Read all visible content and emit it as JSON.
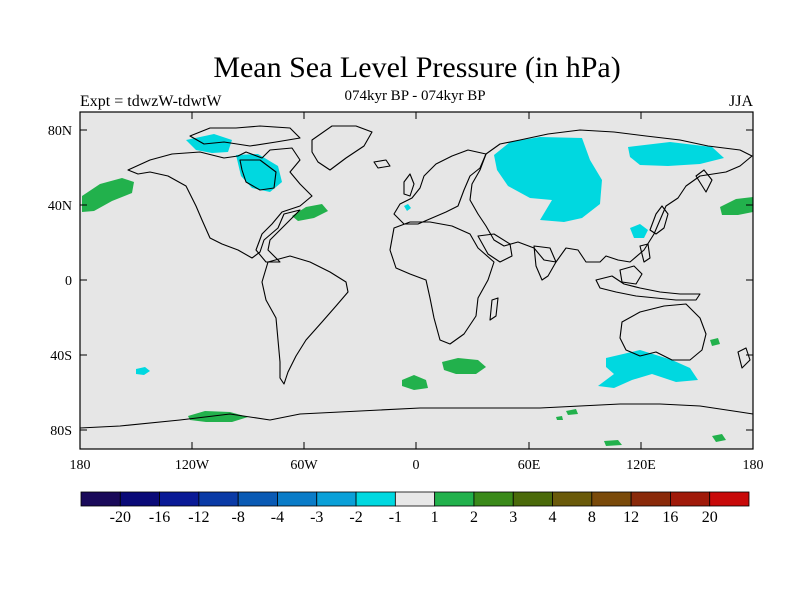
{
  "header": {
    "title": "Mean Sea Level Pressure (in hPa)",
    "subtitle": "074kyr BP - 074kyr BP",
    "experiment": "Expt = tdwzW-tdwtW",
    "season": "JJA"
  },
  "map": {
    "projection": "cylindrical equidistant",
    "background_color": "#e6e6e6",
    "coastline_color": "#000000",
    "lat_ticks": [
      "80N",
      "40N",
      "0",
      "40S",
      "80S"
    ],
    "lon_ticks": [
      "180",
      "120W",
      "60W",
      "0",
      "60E",
      "120E",
      "180"
    ],
    "anomaly_colors": {
      "negative_1_to_2": "#00d8e0",
      "positive_1_to_2": "#22b14c"
    }
  },
  "colorbar": {
    "colors": [
      "#1a0a5a",
      "#0a0a78",
      "#0a1a96",
      "#0a3aa6",
      "#0a5ab4",
      "#0a7cc8",
      "#0aa0d8",
      "#00d8e0",
      "#e8e8e8",
      "#22b14c",
      "#3a8a1a",
      "#4a6a0a",
      "#6a5a0a",
      "#7a4a0a",
      "#8a2a0a",
      "#a01a0a",
      "#c80a0a"
    ],
    "labels": [
      "-20",
      "-16",
      "-12",
      "-8",
      "-4",
      "-3",
      "-2",
      "-1",
      "1",
      "2",
      "3",
      "4",
      "8",
      "12",
      "16",
      "20"
    ]
  }
}
